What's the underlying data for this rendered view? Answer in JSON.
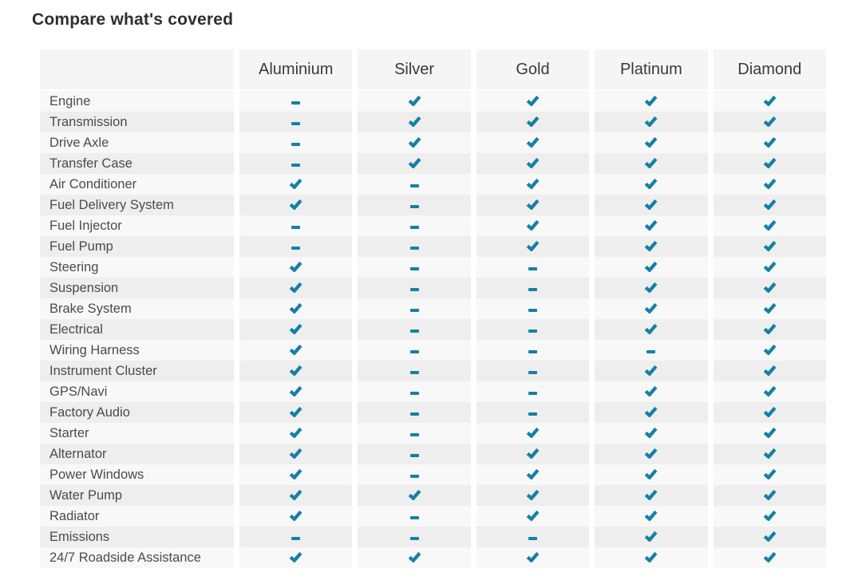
{
  "page": {
    "title": "Compare what's covered"
  },
  "colors": {
    "accent": "#1380a8"
  },
  "icons": {
    "covered": "check-icon",
    "not_covered": "dash-icon"
  },
  "table": {
    "columns": [
      "Aluminium",
      "Silver",
      "Gold",
      "Platinum",
      "Diamond"
    ],
    "rows": [
      {
        "label": "Engine",
        "values": [
          "dash",
          "check",
          "check",
          "check",
          "check"
        ]
      },
      {
        "label": "Transmission",
        "values": [
          "dash",
          "check",
          "check",
          "check",
          "check"
        ]
      },
      {
        "label": "Drive Axle",
        "values": [
          "dash",
          "check",
          "check",
          "check",
          "check"
        ]
      },
      {
        "label": "Transfer Case",
        "values": [
          "dash",
          "check",
          "check",
          "check",
          "check"
        ]
      },
      {
        "label": "Air Conditioner",
        "values": [
          "check",
          "dash",
          "check",
          "check",
          "check"
        ]
      },
      {
        "label": "Fuel Delivery System",
        "values": [
          "check",
          "dash",
          "check",
          "check",
          "check"
        ]
      },
      {
        "label": "Fuel Injector",
        "values": [
          "dash",
          "dash",
          "check",
          "check",
          "check"
        ]
      },
      {
        "label": "Fuel Pump",
        "values": [
          "dash",
          "dash",
          "check",
          "check",
          "check"
        ]
      },
      {
        "label": "Steering",
        "values": [
          "check",
          "dash",
          "dash",
          "check",
          "check"
        ]
      },
      {
        "label": "Suspension",
        "values": [
          "check",
          "dash",
          "dash",
          "check",
          "check"
        ]
      },
      {
        "label": "Brake System",
        "values": [
          "check",
          "dash",
          "dash",
          "check",
          "check"
        ]
      },
      {
        "label": "Electrical",
        "values": [
          "check",
          "dash",
          "dash",
          "check",
          "check"
        ]
      },
      {
        "label": "Wiring Harness",
        "values": [
          "check",
          "dash",
          "dash",
          "dash",
          "check"
        ]
      },
      {
        "label": "Instrument Cluster",
        "values": [
          "check",
          "dash",
          "dash",
          "check",
          "check"
        ]
      },
      {
        "label": "GPS/Navi",
        "values": [
          "check",
          "dash",
          "dash",
          "check",
          "check"
        ]
      },
      {
        "label": "Factory Audio",
        "values": [
          "check",
          "dash",
          "dash",
          "check",
          "check"
        ]
      },
      {
        "label": "Starter",
        "values": [
          "check",
          "dash",
          "check",
          "check",
          "check"
        ]
      },
      {
        "label": "Alternator",
        "values": [
          "check",
          "dash",
          "check",
          "check",
          "check"
        ]
      },
      {
        "label": "Power Windows",
        "values": [
          "check",
          "dash",
          "check",
          "check",
          "check"
        ]
      },
      {
        "label": "Water Pump",
        "values": [
          "check",
          "check",
          "check",
          "check",
          "check"
        ]
      },
      {
        "label": "Radiator",
        "values": [
          "check",
          "dash",
          "check",
          "check",
          "check"
        ]
      },
      {
        "label": "Emissions",
        "values": [
          "dash",
          "dash",
          "dash",
          "check",
          "check"
        ]
      },
      {
        "label": "24/7 Roadside Assistance",
        "values": [
          "check",
          "check",
          "check",
          "check",
          "check"
        ]
      }
    ]
  }
}
